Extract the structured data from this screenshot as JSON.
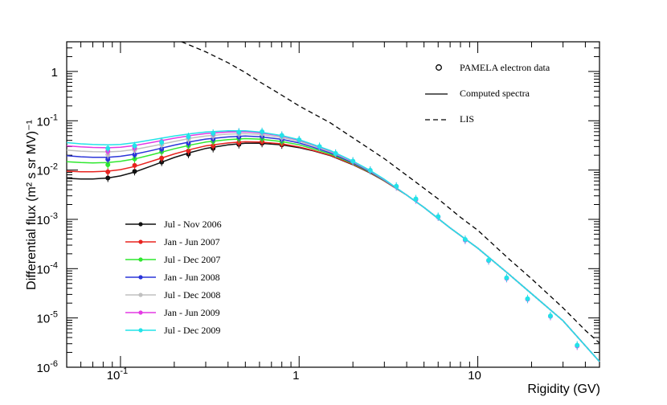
{
  "chart_data": {
    "type": "line",
    "xscale": "log",
    "yscale": "log",
    "xlim": [
      0.05,
      48
    ],
    "ylim": [
      1e-06,
      4
    ],
    "xlabel": "Rigidity (GV)",
    "ylabel": "Differential flux (m² s sr MV)⁻¹",
    "x_ticks": [
      {
        "value": 0.1,
        "base": "10",
        "exp": "-1"
      },
      {
        "value": 1,
        "base": "1",
        "exp": ""
      },
      {
        "value": 10,
        "base": "10",
        "exp": ""
      }
    ],
    "y_ticks": [
      {
        "value": 1,
        "base": "1",
        "exp": ""
      },
      {
        "value": 0.1,
        "base": "10",
        "exp": "-1"
      },
      {
        "value": 0.01,
        "base": "10",
        "exp": "-2"
      },
      {
        "value": 0.001,
        "base": "10",
        "exp": "-3"
      },
      {
        "value": 0.0001,
        "base": "10",
        "exp": "-4"
      },
      {
        "value": 1e-05,
        "base": "10",
        "exp": "-5"
      },
      {
        "value": 1e-06,
        "base": "10",
        "exp": "-6"
      }
    ],
    "legend_top": [
      {
        "label": "PAMELA electron data",
        "style": "marker"
      },
      {
        "label": "Computed spectra",
        "style": "solid"
      },
      {
        "label": "LIS",
        "style": "dashed"
      }
    ],
    "lis": {
      "x": [
        0.22,
        0.3,
        0.4,
        0.5,
        0.6,
        0.8,
        1.0,
        1.5,
        2,
        3,
        4,
        6,
        8,
        10,
        15,
        20,
        30,
        40,
        48
      ],
      "y": [
        4.0,
        2.5,
        1.5,
        0.95,
        0.62,
        0.33,
        0.2,
        0.09,
        0.045,
        0.017,
        0.0078,
        0.0026,
        0.0011,
        0.0006,
        0.000155,
        6.2e-05,
        1.6e-05,
        5.6e-06,
        3.1e-06
      ]
    },
    "series": [
      {
        "name": "Jul - Nov 2006",
        "color": "#111111",
        "line_x": [
          0.05,
          0.06,
          0.07,
          0.085,
          0.1,
          0.12,
          0.15,
          0.2,
          0.25,
          0.3,
          0.4,
          0.5,
          0.6,
          0.8,
          1.0,
          1.2,
          1.5,
          2.0,
          2.5,
          3.0,
          4.0,
          5.0,
          7.0,
          10,
          15,
          20,
          30,
          48
        ],
        "line_y": [
          0.0068,
          0.0066,
          0.0066,
          0.0069,
          0.0076,
          0.0091,
          0.0122,
          0.018,
          0.023,
          0.0275,
          0.0325,
          0.035,
          0.035,
          0.0325,
          0.0285,
          0.0245,
          0.0195,
          0.0128,
          0.0087,
          0.006,
          0.0031,
          0.00175,
          0.00067,
          0.00026,
          7.6e-05,
          3.1e-05,
          8.8e-06,
          1.3e-06
        ],
        "points_x": [
          0.085,
          0.12,
          0.17,
          0.24,
          0.33,
          0.46,
          0.62,
          0.8
        ],
        "points_y": [
          0.0069,
          0.0094,
          0.0145,
          0.021,
          0.0275,
          0.033,
          0.035,
          0.0325
        ]
      },
      {
        "name": "Jan - Jun 2007",
        "color": "#e8231f",
        "line_x": [
          0.05,
          0.06,
          0.07,
          0.085,
          0.1,
          0.12,
          0.15,
          0.2,
          0.25,
          0.3,
          0.4,
          0.5,
          0.6,
          0.8,
          1.0,
          1.2,
          1.5,
          2.0,
          2.5,
          3.0,
          4.0,
          5.0,
          7.0,
          10,
          15,
          20,
          30,
          48
        ],
        "line_y": [
          0.0095,
          0.0092,
          0.0092,
          0.0095,
          0.0102,
          0.0118,
          0.0152,
          0.0212,
          0.0265,
          0.031,
          0.0355,
          0.0375,
          0.037,
          0.034,
          0.0295,
          0.025,
          0.0198,
          0.013,
          0.0088,
          0.006,
          0.0031,
          0.00175,
          0.00067,
          0.00026,
          7.6e-05,
          3.1e-05,
          8.8e-06,
          1.3e-06
        ],
        "points_x": [
          0.085,
          0.12,
          0.17,
          0.24,
          0.33,
          0.46,
          0.62,
          0.8
        ],
        "points_y": [
          0.0092,
          0.0124,
          0.0175,
          0.0245,
          0.031,
          0.036,
          0.0375,
          0.034
        ]
      },
      {
        "name": "Jul - Dec 2007",
        "color": "#2fe82f",
        "line_x": [
          0.05,
          0.06,
          0.07,
          0.085,
          0.1,
          0.12,
          0.15,
          0.2,
          0.25,
          0.3,
          0.4,
          0.5,
          0.6,
          0.8,
          1.0,
          1.2,
          1.5,
          2.0,
          2.5,
          3.0,
          4.0,
          5.0,
          7.0,
          10,
          15,
          20,
          30,
          48
        ],
        "line_y": [
          0.0148,
          0.0142,
          0.014,
          0.0142,
          0.015,
          0.0168,
          0.0205,
          0.027,
          0.0325,
          0.037,
          0.0415,
          0.0435,
          0.0425,
          0.038,
          0.0325,
          0.027,
          0.021,
          0.0135,
          0.009,
          0.0061,
          0.0031,
          0.00175,
          0.00067,
          0.00026,
          7.6e-05,
          3.1e-05,
          8.8e-06,
          1.3e-06
        ],
        "points_x": [
          0.085,
          0.12,
          0.17,
          0.24,
          0.33,
          0.46,
          0.62,
          0.8
        ],
        "points_y": [
          0.0128,
          0.0168,
          0.0235,
          0.031,
          0.038,
          0.043,
          0.0435,
          0.038
        ]
      },
      {
        "name": "Jan - Jun 2008",
        "color": "#2b35d9",
        "line_x": [
          0.05,
          0.06,
          0.07,
          0.085,
          0.1,
          0.12,
          0.15,
          0.2,
          0.25,
          0.3,
          0.4,
          0.5,
          0.6,
          0.8,
          1.0,
          1.2,
          1.5,
          2.0,
          2.5,
          3.0,
          4.0,
          5.0,
          7.0,
          10,
          15,
          20,
          30,
          48
        ],
        "line_y": [
          0.0195,
          0.0186,
          0.0182,
          0.0182,
          0.019,
          0.021,
          0.025,
          0.032,
          0.038,
          0.0425,
          0.047,
          0.049,
          0.0475,
          0.042,
          0.0355,
          0.029,
          0.0222,
          0.014,
          0.0092,
          0.0062,
          0.0031,
          0.00175,
          0.00067,
          0.00026,
          7.6e-05,
          3.1e-05,
          8.8e-06,
          1.3e-06
        ],
        "points_x": [
          0.085,
          0.12,
          0.17,
          0.24,
          0.33,
          0.46,
          0.62,
          0.8
        ],
        "points_y": [
          0.0165,
          0.0205,
          0.0265,
          0.035,
          0.0425,
          0.047,
          0.0485,
          0.042
        ]
      },
      {
        "name": "Jul - Dec 2008",
        "color": "#c0c0c0",
        "line_x": [
          0.05,
          0.06,
          0.07,
          0.085,
          0.1,
          0.12,
          0.15,
          0.2,
          0.25,
          0.3,
          0.4,
          0.5,
          0.6,
          0.8,
          1.0,
          1.2,
          1.5,
          2.0,
          2.5,
          3.0,
          4.0,
          5.0,
          7.0,
          10,
          15,
          20,
          30,
          48
        ],
        "line_y": [
          0.0255,
          0.0242,
          0.0236,
          0.0234,
          0.024,
          0.0262,
          0.0305,
          0.038,
          0.0445,
          0.049,
          0.0535,
          0.055,
          0.053,
          0.046,
          0.0385,
          0.031,
          0.0235,
          0.0146,
          0.0095,
          0.0063,
          0.0031,
          0.00175,
          0.00067,
          0.00026,
          7.6e-05,
          3.1e-05,
          8.8e-06,
          1.3e-06
        ],
        "points_x": [
          0.085,
          0.12,
          0.17,
          0.24,
          0.33,
          0.46,
          0.62,
          0.8
        ],
        "points_y": [
          0.0205,
          0.0255,
          0.0325,
          0.042,
          0.049,
          0.054,
          0.0545,
          0.046
        ]
      },
      {
        "name": "Jan - Jun 2009",
        "color": "#e43ae4",
        "line_x": [
          0.05,
          0.06,
          0.07,
          0.085,
          0.1,
          0.12,
          0.15,
          0.2,
          0.25,
          0.3,
          0.4,
          0.5,
          0.6,
          0.8,
          1.0,
          1.2,
          1.5,
          2.0,
          2.5,
          3.0,
          4.0,
          5.0,
          7.0,
          10,
          15,
          20,
          30,
          48
        ],
        "line_y": [
          0.031,
          0.0295,
          0.0287,
          0.0283,
          0.029,
          0.0315,
          0.0362,
          0.0442,
          0.0505,
          0.055,
          0.059,
          0.06,
          0.057,
          0.049,
          0.0405,
          0.0325,
          0.0244,
          0.015,
          0.0097,
          0.0064,
          0.0031,
          0.00175,
          0.00067,
          0.00026,
          7.6e-05,
          3.1e-05,
          8.8e-06,
          1.3e-06
        ],
        "points_x": [
          0.085,
          0.12,
          0.17,
          0.24,
          0.33,
          0.46,
          0.62,
          0.8,
          1.0,
          1.3,
          1.6,
          2.0,
          2.5,
          3.5,
          4.5,
          6.0,
          8.5,
          11.5,
          14.5,
          19.0,
          25.5,
          36.0
        ],
        "points_y": [
          0.024,
          0.028,
          0.038,
          0.047,
          0.054,
          0.058,
          0.059,
          0.05,
          0.0405,
          0.0295,
          0.0215,
          0.015,
          0.0098,
          0.0046,
          0.0025,
          0.00112,
          0.00038,
          0.000145,
          6.35e-05,
          2.4e-05,
          1.08e-05,
          2.7e-06
        ]
      },
      {
        "name": "Jul - Dec 2009",
        "color": "#22e3e8",
        "line_x": [
          0.05,
          0.06,
          0.07,
          0.085,
          0.1,
          0.12,
          0.15,
          0.2,
          0.25,
          0.3,
          0.4,
          0.5,
          0.6,
          0.8,
          1.0,
          1.2,
          1.5,
          2.0,
          2.5,
          3.0,
          4.0,
          5.0,
          7.0,
          10,
          15,
          20,
          30,
          48
        ],
        "line_y": [
          0.036,
          0.034,
          0.033,
          0.0325,
          0.0332,
          0.0358,
          0.041,
          0.049,
          0.055,
          0.059,
          0.0625,
          0.0625,
          0.059,
          0.05,
          0.0412,
          0.033,
          0.0248,
          0.0152,
          0.0098,
          0.0065,
          0.0031,
          0.00175,
          0.00067,
          0.00026,
          7.6e-05,
          3.1e-05,
          8.8e-06,
          1.3e-06
        ],
        "points_x": [
          0.085,
          0.12,
          0.17,
          0.24,
          0.33,
          0.46,
          0.62,
          0.8,
          1.0,
          1.3,
          1.6,
          2.0,
          2.5,
          3.5,
          4.5,
          6.0,
          8.5,
          11.5,
          14.5,
          19.0,
          25.5,
          36.0
        ],
        "points_y": [
          0.0275,
          0.031,
          0.0365,
          0.0475,
          0.0555,
          0.059,
          0.06,
          0.0505,
          0.041,
          0.03,
          0.0218,
          0.0152,
          0.0099,
          0.0047,
          0.0026,
          0.00114,
          0.00039,
          0.000148,
          6.5e-05,
          2.45e-05,
          1.1e-05,
          2.8e-06
        ]
      }
    ]
  }
}
